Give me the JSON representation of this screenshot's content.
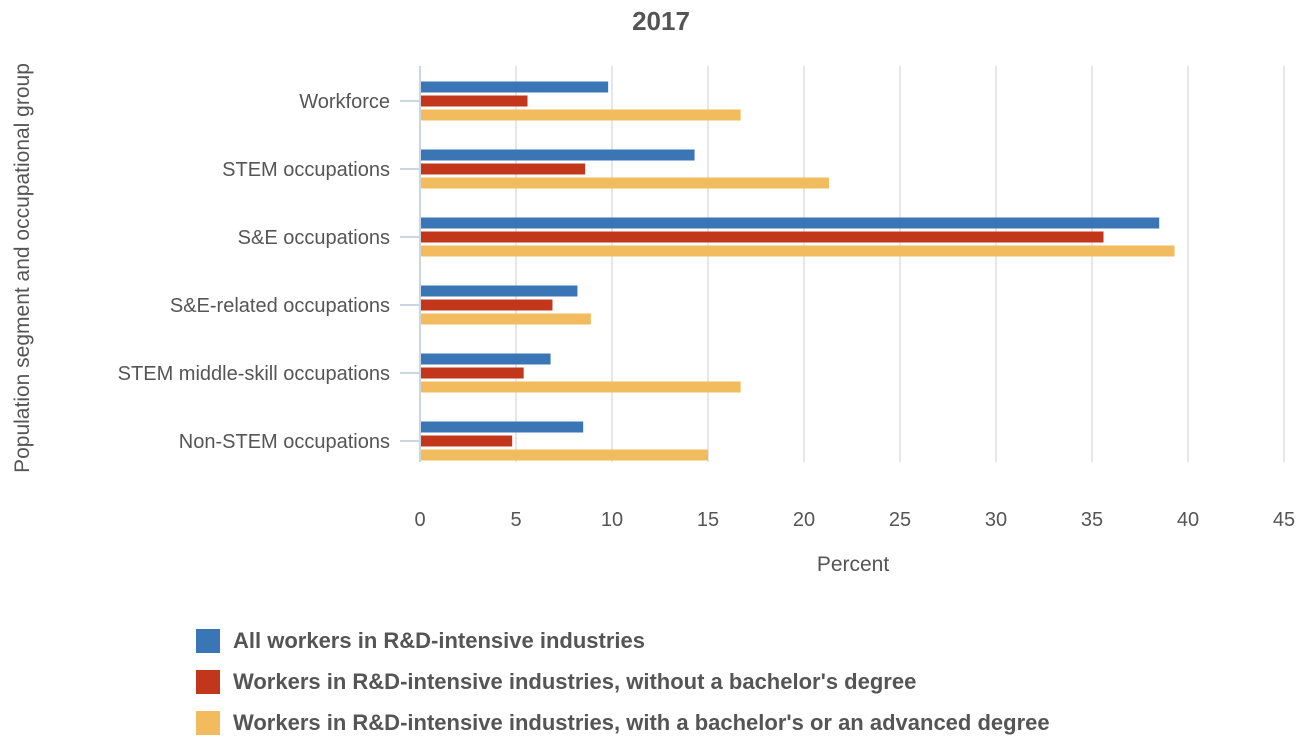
{
  "chart_data": {
    "type": "bar",
    "orientation": "horizontal",
    "title": "2017",
    "xlabel": "Percent",
    "ylabel": "Population segment and occupational group",
    "xlim": [
      0,
      45
    ],
    "xticks": [
      "0",
      "5",
      "10",
      "15",
      "20",
      "25",
      "30",
      "35",
      "40",
      "45"
    ],
    "grid": true,
    "legend_position": "bottom",
    "categories": [
      "Workforce",
      "STEM occupations",
      "S&E occupations",
      "S&E-related occupations",
      "STEM middle-skill occupations",
      "Non-STEM occupations"
    ],
    "series": [
      {
        "name": "All workers in R&D-intensive industries",
        "color": "#3a76b5",
        "values": [
          9.8,
          14.3,
          38.5,
          8.2,
          6.8,
          8.5
        ]
      },
      {
        "name": "Workers in R&D-intensive industries, without a bachelor's degree",
        "color": "#c2371c",
        "values": [
          5.6,
          8.6,
          35.6,
          6.9,
          5.4,
          4.8
        ]
      },
      {
        "name": "Workers in R&D-intensive industries, with a bachelor's or an advanced degree",
        "color": "#f2bc5e",
        "values": [
          16.7,
          21.3,
          39.3,
          8.9,
          16.7,
          15.0
        ]
      }
    ]
  }
}
